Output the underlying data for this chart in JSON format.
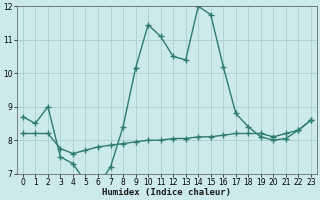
{
  "line1_x": [
    0,
    1,
    2,
    3,
    4,
    5,
    6,
    7,
    8,
    9,
    10,
    11,
    12,
    13,
    14,
    15,
    16,
    17,
    18,
    19,
    20,
    21,
    22,
    23
  ],
  "line1_y": [
    8.7,
    8.5,
    9.0,
    7.5,
    7.3,
    6.75,
    6.65,
    7.2,
    8.4,
    10.15,
    11.45,
    11.1,
    10.5,
    10.4,
    12.0,
    11.75,
    10.2,
    8.8,
    8.4,
    8.1,
    8.0,
    8.05,
    8.3,
    8.6
  ],
  "line2_x": [
    0,
    1,
    2,
    3,
    4,
    5,
    6,
    7,
    8,
    9,
    10,
    11,
    12,
    13,
    14,
    15,
    16,
    17,
    18,
    19,
    20,
    21,
    22,
    23
  ],
  "line2_y": [
    8.2,
    8.2,
    8.2,
    7.75,
    7.6,
    7.7,
    7.8,
    7.85,
    7.9,
    7.95,
    8.0,
    8.0,
    8.05,
    8.05,
    8.1,
    8.1,
    8.15,
    8.2,
    8.2,
    8.2,
    8.1,
    8.2,
    8.3,
    8.6
  ],
  "line_color": "#2e7b70",
  "bg_color": "#cdeaea",
  "grid_color": "#aacfcf",
  "xlabel": "Humidex (Indice chaleur)",
  "xlim": [
    -0.5,
    23.5
  ],
  "ylim": [
    7,
    12
  ],
  "yticks": [
    7,
    8,
    9,
    10,
    11,
    12
  ],
  "xticks": [
    0,
    1,
    2,
    3,
    4,
    5,
    6,
    7,
    8,
    9,
    10,
    11,
    12,
    13,
    14,
    15,
    16,
    17,
    18,
    19,
    20,
    21,
    22,
    23
  ],
  "marker": "+",
  "linewidth": 1.0,
  "markersize": 4,
  "markeredgewidth": 1.0
}
